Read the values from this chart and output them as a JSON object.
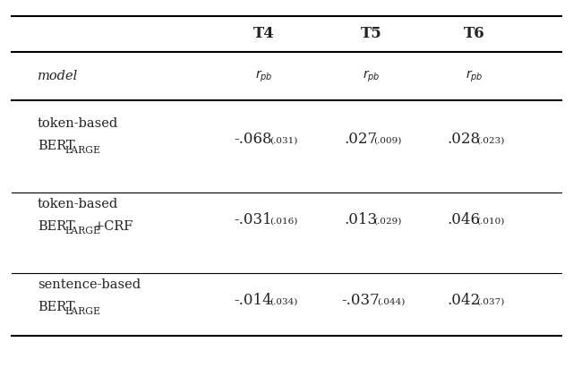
{
  "columns": [
    "T4",
    "T5",
    "T6"
  ],
  "rows": [
    {
      "model_line1": "token-based",
      "model_line2": "BERT",
      "model_suffix": "LARGE",
      "model_extra": "",
      "values": [
        {
          "main": "-.068",
          "sub": "(.031)"
        },
        {
          "main": ".027",
          "sub": "(.009)"
        },
        {
          "main": ".028",
          "sub": "(.023)"
        }
      ]
    },
    {
      "model_line1": "token-based",
      "model_line2": "BERT",
      "model_suffix": "LARGE",
      "model_extra": "+CRF",
      "values": [
        {
          "main": "-.031",
          "sub": "(.016)"
        },
        {
          "main": ".013",
          "sub": "(.029)"
        },
        {
          "main": ".046",
          "sub": "(.010)"
        }
      ]
    },
    {
      "model_line1": "sentence-based",
      "model_line2": "BERT",
      "model_suffix": "LARGE",
      "model_extra": "",
      "values": [
        {
          "main": "-.014",
          "sub": "(.034)"
        },
        {
          "main": "-.037",
          "sub": "(.044)"
        },
        {
          "main": ".042",
          "sub": "(.037)"
        }
      ]
    }
  ],
  "bg_color": "#ffffff",
  "text_color": "#222222",
  "line_color": "#000000",
  "col_header_fontsize": 12,
  "body_fontsize": 10.5,
  "rpb_fontsize": 10,
  "sub_fontsize": 7.5,
  "bert_large_fontsize": 7.8
}
